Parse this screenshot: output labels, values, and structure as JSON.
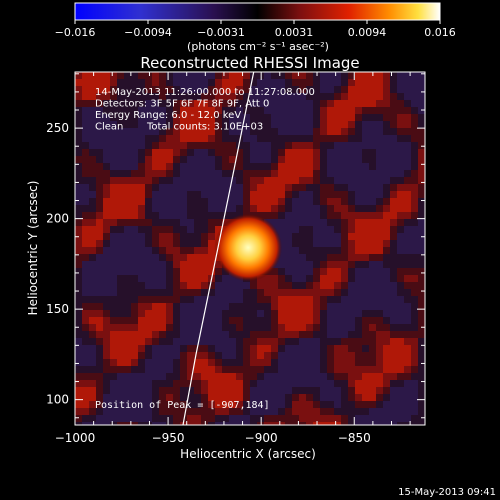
{
  "colorbar": {
    "ticks": [
      "-0.016",
      "-0.0094",
      "-0.0031",
      "0.0031",
      "0.0094",
      "0.016"
    ],
    "unit_label": "(photons cm⁻² s⁻¹ asec⁻²)",
    "min": -0.016,
    "max": 0.016
  },
  "colors": {
    "background": "#000000",
    "foreground": "#ffffff",
    "colormap_low": "#0000ff",
    "colormap_mid": "#000000",
    "colormap_high": "#ffffff"
  },
  "chart_data": {
    "type": "heatmap",
    "title": "Reconstructed RHESSI Image",
    "xlabel": "Heliocentric X (arcsec)",
    "ylabel": "Heliocentric Y (arcsec)",
    "xlim": [
      -1000,
      -812
    ],
    "ylim": [
      86,
      281
    ],
    "xticks": [
      -1000,
      -950,
      -900,
      -850
    ],
    "xtick_labels": [
      "−1000",
      "−950",
      "−900",
      "−850"
    ],
    "yticks": [
      100,
      150,
      200,
      250
    ],
    "ytick_labels": [
      "100",
      "150",
      "200",
      "250"
    ],
    "peak": {
      "x": -907,
      "y": 184
    },
    "annotations": [
      "14-May-2013 11:26:00.000 to 11:27:08.000",
      "Detectors: 3F 5F 6F 7F 8F 9F, Att 0",
      "Energy Range: 6.0 - 12.0 keV",
      "Clean",
      "Total counts: 3.10E+03"
    ],
    "peak_label": "Position of Peak = [-907,184]",
    "limb_curve": [
      [
        -942,
        86
      ],
      [
        -935,
        125
      ],
      [
        -926,
        170
      ],
      [
        -916,
        220
      ],
      [
        -904,
        281
      ]
    ],
    "grid": false
  },
  "footer": {
    "timestamp": "15-May-2013 09:41"
  }
}
